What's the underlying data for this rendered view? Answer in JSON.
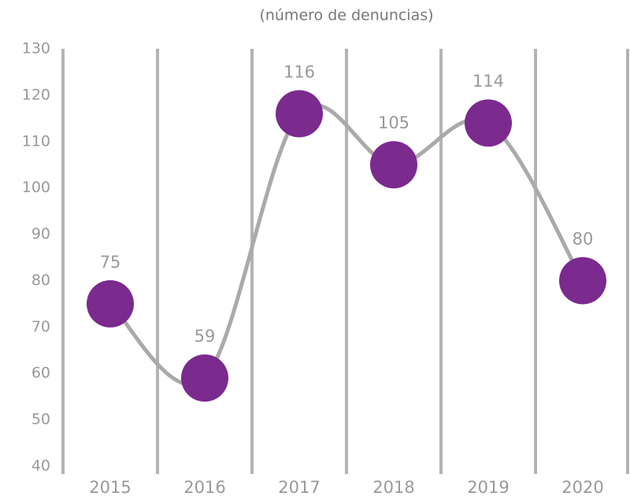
{
  "chart_data": {
    "type": "line",
    "subtitle": "(número de denuncias)",
    "categories": [
      "2015",
      "2016",
      "2017",
      "2018",
      "2019",
      "2020"
    ],
    "series": [
      {
        "color": "#7b2a8e",
        "values": [
          75,
          59,
          116,
          105,
          114,
          80
        ]
      }
    ],
    "ylim": [
      40,
      130
    ],
    "yticks": [
      40,
      50,
      60,
      70,
      80,
      90,
      100,
      110,
      120,
      130
    ],
    "grid": false
  }
}
